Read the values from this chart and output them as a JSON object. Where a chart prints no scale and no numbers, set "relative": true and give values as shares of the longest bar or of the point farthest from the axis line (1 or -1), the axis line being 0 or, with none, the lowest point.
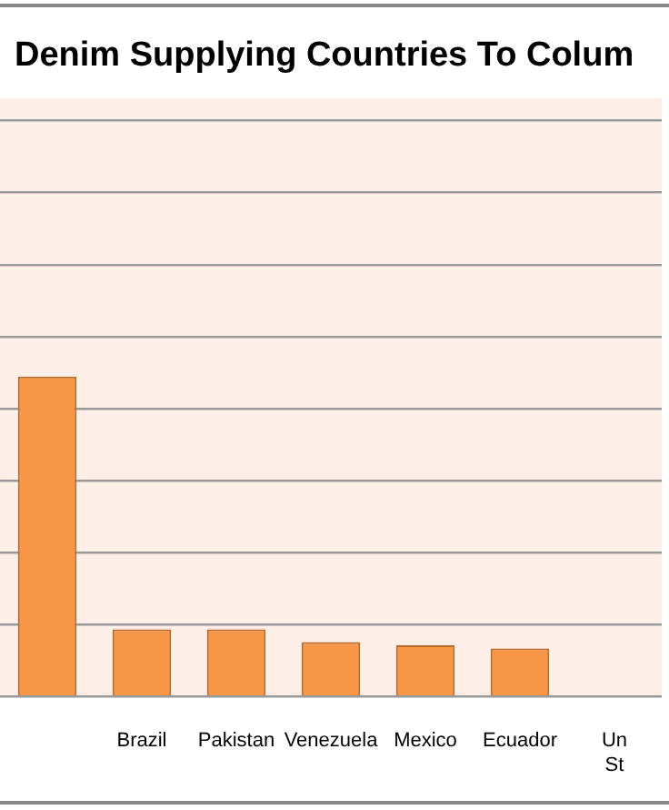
{
  "chart_data": {
    "type": "bar",
    "title": "Denim Supplying Countries To Colum",
    "categories": [
      null,
      "Brazil",
      "Pakistan",
      "Venezuela",
      "Mexico",
      "Ecuador",
      "Un St"
    ],
    "values": [
      1,
      0.21,
      0.21,
      0.17,
      0.16,
      0.15,
      null
    ],
    "color": "#f79646",
    "relative": true,
    "grid": "y"
  }
}
